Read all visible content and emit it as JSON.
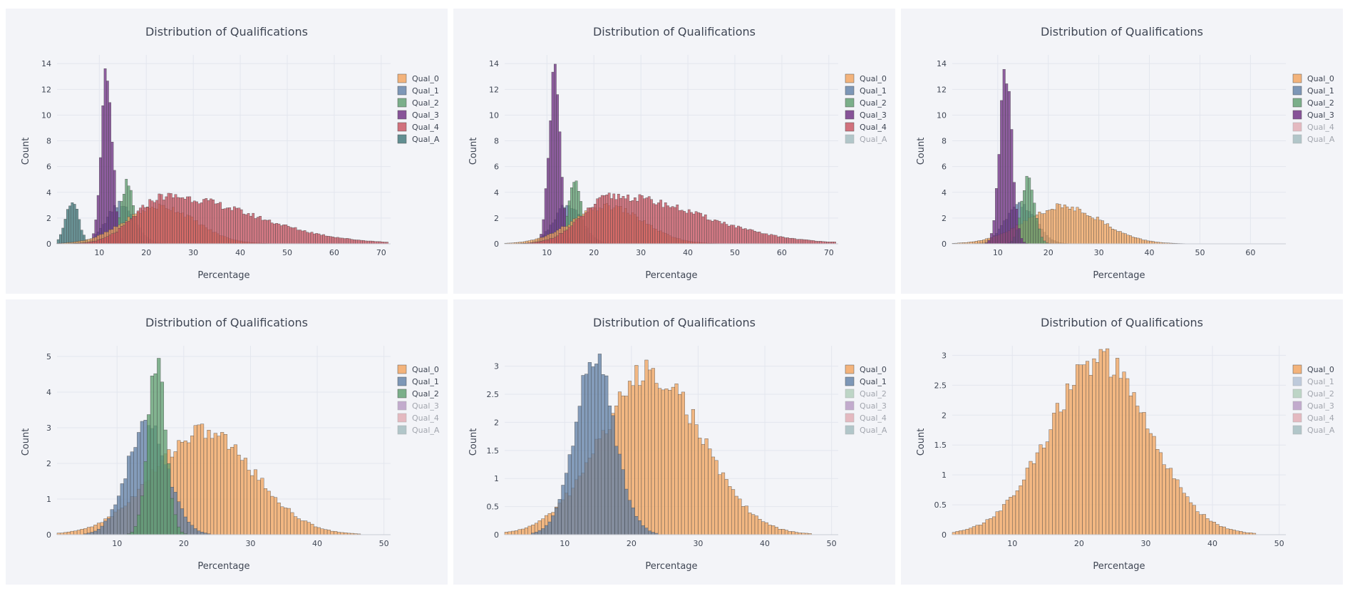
{
  "colors": {
    "Qual_0": "#f2a35b",
    "Qual_1": "#5f7fa6",
    "Qual_2": "#5c9e6e",
    "Qual_3": "#6b2b80",
    "Qual_4": "#c8505e",
    "Qual_A": "#3c7477"
  },
  "legend": [
    "Qual_0",
    "Qual_1",
    "Qual_2",
    "Qual_3",
    "Qual_4",
    "Qual_A"
  ],
  "chart_data": [
    {
      "type": "histogram",
      "title": "Distribution of Qualifications",
      "xlabel": "Percentage",
      "ylabel": "Count",
      "xlim": [
        1,
        72
      ],
      "ylim": [
        0,
        14.4
      ],
      "xticks": [
        10,
        20,
        30,
        40,
        50,
        60,
        70
      ],
      "yticks": [
        0,
        2,
        4,
        6,
        8,
        10,
        12,
        14
      ],
      "visible": [
        "Qual_0",
        "Qual_1",
        "Qual_2",
        "Qual_3",
        "Qual_4",
        "Qual_A"
      ],
      "series": [
        {
          "name": "Qual_A",
          "mean": 4.2,
          "sd": 1.4,
          "peak": 3.3
        },
        {
          "name": "Qual_1",
          "mean": 14.5,
          "sd": 3.0,
          "peak": 3.1
        },
        {
          "name": "Qual_2",
          "mean": 16.0,
          "sd": 1.3,
          "peak": 5.0
        },
        {
          "name": "Qual_3",
          "mean": 11.6,
          "sd": 1.2,
          "peak": 13.5
        },
        {
          "name": "Qual_0",
          "mean": 23.0,
          "sd": 7.5,
          "peak": 2.9
        },
        {
          "name": "Qual_4",
          "mean": 24.0,
          "sd": 10.5,
          "peak": 3.7,
          "skew": true
        }
      ]
    },
    {
      "type": "histogram",
      "title": "Distribution of Qualifications",
      "xlabel": "Percentage",
      "ylabel": "Count",
      "xlim": [
        1,
        72
      ],
      "ylim": [
        0,
        14.4
      ],
      "xticks": [
        10,
        20,
        30,
        40,
        50,
        60,
        70
      ],
      "yticks": [
        0,
        2,
        4,
        6,
        8,
        10,
        12,
        14
      ],
      "visible": [
        "Qual_0",
        "Qual_1",
        "Qual_2",
        "Qual_3",
        "Qual_4"
      ],
      "series": [
        {
          "name": "Qual_1",
          "mean": 14.5,
          "sd": 3.0,
          "peak": 3.1
        },
        {
          "name": "Qual_2",
          "mean": 16.0,
          "sd": 1.3,
          "peak": 5.0
        },
        {
          "name": "Qual_3",
          "mean": 11.6,
          "sd": 1.2,
          "peak": 13.5
        },
        {
          "name": "Qual_0",
          "mean": 23.0,
          "sd": 7.5,
          "peak": 2.9
        },
        {
          "name": "Qual_4",
          "mean": 24.0,
          "sd": 10.5,
          "peak": 3.7,
          "skew": true
        }
      ]
    },
    {
      "type": "histogram",
      "title": "Distribution of Qualifications",
      "xlabel": "Percentage",
      "ylabel": "Count",
      "xlim": [
        1,
        67
      ],
      "ylim": [
        0,
        14.4
      ],
      "xticks": [
        10,
        20,
        30,
        40,
        50,
        60
      ],
      "yticks": [
        0,
        2,
        4,
        6,
        8,
        10,
        12,
        14
      ],
      "visible": [
        "Qual_0",
        "Qual_1",
        "Qual_2",
        "Qual_3"
      ],
      "series": [
        {
          "name": "Qual_1",
          "mean": 14.5,
          "sd": 3.0,
          "peak": 3.1
        },
        {
          "name": "Qual_0",
          "mean": 23.0,
          "sd": 7.5,
          "peak": 2.9
        },
        {
          "name": "Qual_2",
          "mean": 16.0,
          "sd": 1.3,
          "peak": 5.0
        },
        {
          "name": "Qual_3",
          "mean": 11.6,
          "sd": 1.2,
          "peak": 13.5
        }
      ]
    },
    {
      "type": "histogram",
      "title": "Distribution of Qualifications",
      "xlabel": "Percentage",
      "ylabel": "Count",
      "xlim": [
        1,
        51
      ],
      "ylim": [
        0,
        5.2
      ],
      "xticks": [
        10,
        20,
        30,
        40,
        50
      ],
      "yticks": [
        0,
        1,
        2,
        3,
        4,
        5
      ],
      "visible": [
        "Qual_0",
        "Qual_1",
        "Qual_2"
      ],
      "series": [
        {
          "name": "Qual_0",
          "mean": 23.0,
          "sd": 7.5,
          "peak": 2.9
        },
        {
          "name": "Qual_1",
          "mean": 14.5,
          "sd": 3.0,
          "peak": 3.1
        },
        {
          "name": "Qual_2",
          "mean": 16.0,
          "sd": 1.3,
          "peak": 5.0
        }
      ]
    },
    {
      "type": "histogram",
      "title": "Distribution of Qualifications",
      "xlabel": "Percentage",
      "ylabel": "Count",
      "xlim": [
        1,
        51
      ],
      "ylim": [
        0,
        3.3
      ],
      "xticks": [
        10,
        20,
        30,
        40,
        50
      ],
      "yticks": [
        0,
        0.5,
        1,
        1.5,
        2,
        2.5,
        3
      ],
      "visible": [
        "Qual_0",
        "Qual_1"
      ],
      "series": [
        {
          "name": "Qual_0",
          "mean": 23.0,
          "sd": 7.5,
          "peak": 2.9
        },
        {
          "name": "Qual_1",
          "mean": 14.5,
          "sd": 3.0,
          "peak": 3.1
        }
      ]
    },
    {
      "type": "histogram",
      "title": "Distribution of Qualifications",
      "xlabel": "Percentage",
      "ylabel": "Count",
      "xlim": [
        1,
        51
      ],
      "ylim": [
        0,
        3.1
      ],
      "xticks": [
        10,
        20,
        30,
        40,
        50
      ],
      "yticks": [
        0,
        0.5,
        1,
        1.5,
        2,
        2.5,
        3
      ],
      "visible": [
        "Qual_0"
      ],
      "series": [
        {
          "name": "Qual_0",
          "mean": 23.0,
          "sd": 7.5,
          "peak": 2.9
        }
      ]
    }
  ]
}
